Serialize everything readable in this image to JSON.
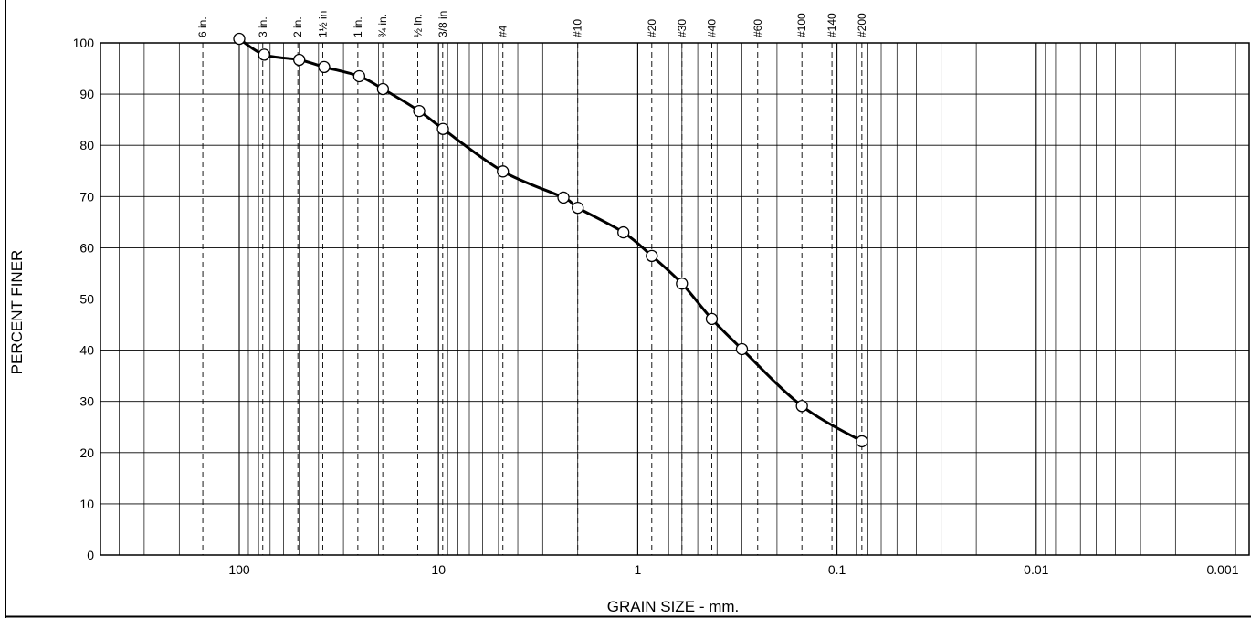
{
  "chart_data": {
    "type": "line",
    "title": "",
    "xlabel": "GRAIN SIZE - mm.",
    "ylabel": "PERCENT FINER",
    "x_scale": "log",
    "x_reversed": true,
    "xlim": [
      500,
      0.001
    ],
    "ylim": [
      0,
      100
    ],
    "y_ticks": [
      "0",
      "10",
      "20",
      "30",
      "40",
      "50",
      "60",
      "70",
      "80",
      "90",
      "100"
    ],
    "x_ticks": [
      {
        "value": 100,
        "label": "100"
      },
      {
        "value": 10,
        "label": "10"
      },
      {
        "value": 1,
        "label": "1"
      },
      {
        "value": 0.1,
        "label": "0.1"
      },
      {
        "value": 0.01,
        "label": "0.01"
      },
      {
        "value": 0.001,
        "label": "0.001"
      }
    ],
    "sieves": [
      {
        "label": "6 in.",
        "size": 152.4
      },
      {
        "label": "3 in.",
        "size": 76.2
      },
      {
        "label": "2 in.",
        "size": 50.8
      },
      {
        "label": "1½ in",
        "size": 38.1
      },
      {
        "label": "1 in.",
        "size": 25.4
      },
      {
        "label": "¾ in.",
        "size": 19.05
      },
      {
        "label": "½ in.",
        "size": 12.7
      },
      {
        "label": "3/8 in",
        "size": 9.525
      },
      {
        "label": "#4",
        "size": 4.75
      },
      {
        "label": "#10",
        "size": 2.0
      },
      {
        "label": "#20",
        "size": 0.85
      },
      {
        "label": "#30",
        "size": 0.6
      },
      {
        "label": "#40",
        "size": 0.425
      },
      {
        "label": "#60",
        "size": 0.25
      },
      {
        "label": "#100",
        "size": 0.15
      },
      {
        "label": "#140",
        "size": 0.106
      },
      {
        "label": "#200",
        "size": 0.075
      }
    ],
    "series": [
      {
        "x": [
          100,
          75,
          50,
          37.5,
          25,
          19,
          12.5,
          9.5,
          4.75,
          2.36,
          2.0,
          1.18,
          0.85,
          0.6,
          0.425,
          0.3,
          0.15,
          0.075
        ],
        "y": [
          100.8,
          97.7,
          96.7,
          95.3,
          93.5,
          91.0,
          86.7,
          83.2,
          74.9,
          69.8,
          67.8,
          63.0,
          58.4,
          53.0,
          46.1,
          40.2,
          29.1,
          22.2
        ]
      }
    ],
    "grid": true
  }
}
